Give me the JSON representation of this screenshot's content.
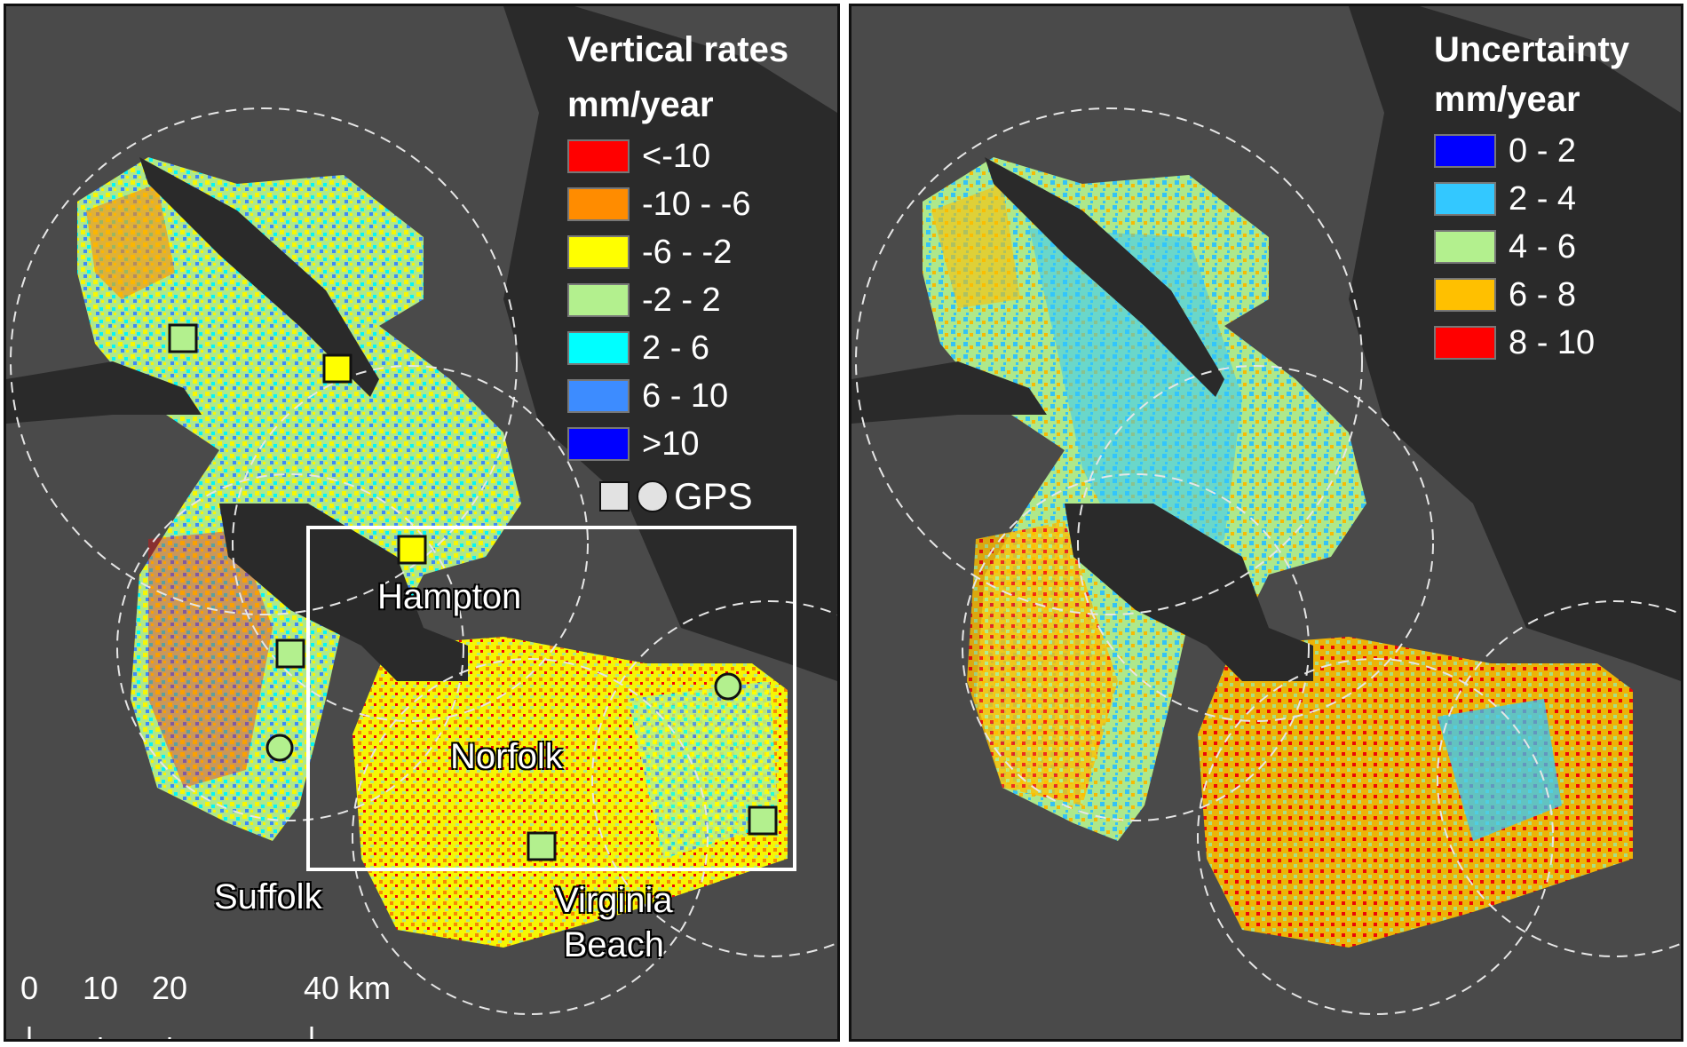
{
  "left_panel": {
    "legend": {
      "title_line1": "Vertical rates",
      "title_line2": "mm/year",
      "items": [
        {
          "label": "<-10",
          "color": "#ff0000"
        },
        {
          "label": "-10 - -6",
          "color": "#ff8c00"
        },
        {
          "label": "-6 - -2",
          "color": "#ffff00"
        },
        {
          "label": "-2 - 2",
          "color": "#b3f08e"
        },
        {
          "label": "2 - 6",
          "color": "#00ffff"
        },
        {
          "label": "6 - 10",
          "color": "#3d8cff"
        },
        {
          "label": ">10",
          "color": "#0000ff"
        }
      ],
      "gps_label": "GPS"
    },
    "cities": {
      "hampton": "Hampton",
      "norfolk": "Norfolk",
      "suffolk": "Suffolk",
      "virginia_beach_1": "Virginia",
      "virginia_beach_2": "Beach"
    },
    "scale_bar": {
      "ticks": [
        "0",
        "10",
        "20",
        "40 km"
      ]
    },
    "gps_stations": [
      {
        "shape": "square",
        "color": "#b3f08e"
      },
      {
        "shape": "square",
        "color": "#ffff00"
      },
      {
        "shape": "square",
        "color": "#ffff00"
      },
      {
        "shape": "square",
        "color": "#b3f08e"
      },
      {
        "shape": "circle",
        "color": "#b3f08e"
      },
      {
        "shape": "circle",
        "color": "#b3f08e"
      },
      {
        "shape": "square",
        "color": "#b3f08e"
      },
      {
        "shape": "square",
        "color": "#b3f08e"
      }
    ]
  },
  "right_panel": {
    "legend": {
      "title_line1": "Uncertainty",
      "title_line2": "mm/year",
      "items": [
        {
          "label": "0 - 2",
          "color": "#0000ff"
        },
        {
          "label": "2 - 4",
          "color": "#33c8ff"
        },
        {
          "label": "4 - 6",
          "color": "#b3f08e"
        },
        {
          "label": "6 - 8",
          "color": "#ffc000"
        },
        {
          "label": "8 - 10",
          "color": "#ff0000"
        }
      ]
    }
  },
  "colors": {
    "background_land": "#4a4a4a",
    "water": "#2a2a2a"
  }
}
